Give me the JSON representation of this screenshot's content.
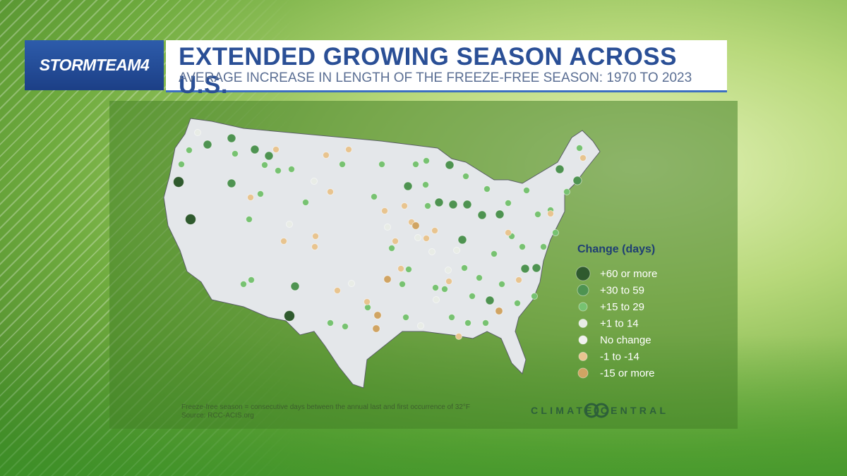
{
  "header": {
    "logo": "STORMTEAM4",
    "title": "EXTENDED GROWING SEASON ACROSS U.S.",
    "subtitle": "AVERAGE INCREASE IN LENGTH OF THE FREEZE-FREE SEASON:  1970 TO 2023"
  },
  "legend": {
    "title": "Change (days)",
    "items": [
      "+60 or more",
      "+30 to 59",
      "+15 to 29",
      "+1 to 14",
      "No change",
      "-1 to -14",
      "-15 or more"
    ]
  },
  "footnote": {
    "note": "Freeze-free season = consecutive days between the annual last and first occurrence of 32°F",
    "source": "Source: RCC-ACIS.org"
  },
  "credit": "CLIMATE CENTRAL"
}
